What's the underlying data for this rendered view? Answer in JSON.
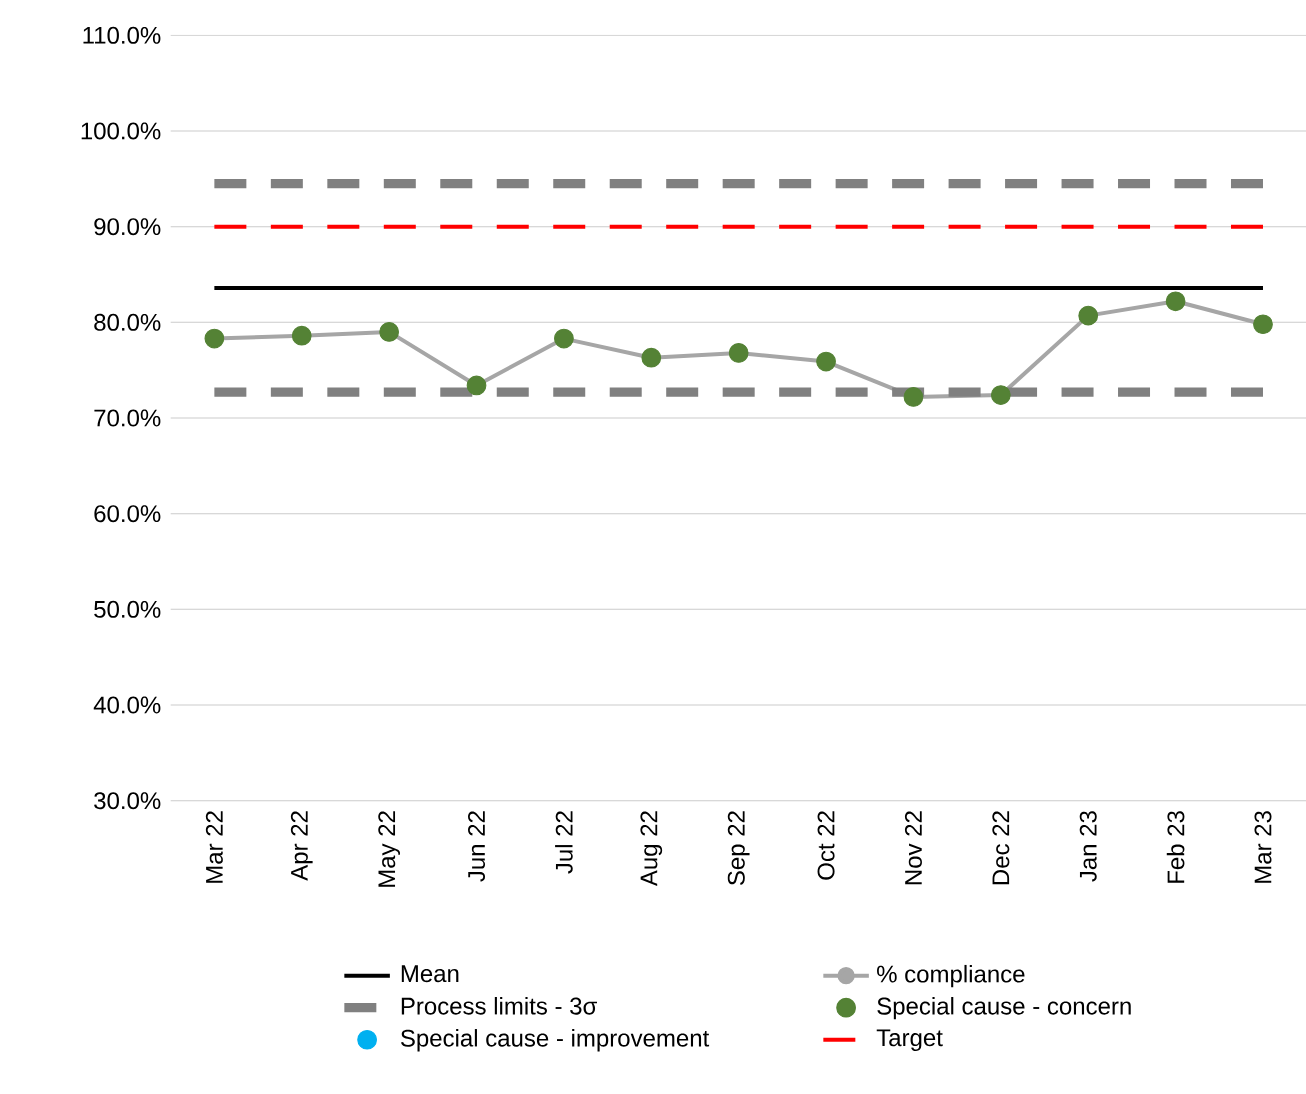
{
  "chart_data": {
    "type": "line",
    "categories": [
      "Mar 22",
      "Apr 22",
      "May 22",
      "Jun 22",
      "Jul 22",
      "Aug 22",
      "Sep 22",
      "Oct 22",
      "Nov 22",
      "Dec 22",
      "Jan 23",
      "Feb 23",
      "Mar 23"
    ],
    "series": [
      {
        "name": "Mean",
        "color": "#000000",
        "line_style": "solid",
        "marker": "none",
        "values": [
          83.6,
          83.6,
          83.6,
          83.6,
          83.6,
          83.6,
          83.6,
          83.6,
          83.6,
          83.6,
          83.6,
          83.6,
          83.6
        ]
      },
      {
        "name": "% compliance",
        "color": "#a6a6a6",
        "line_style": "solid",
        "marker": "circle",
        "values": [
          78.3,
          78.6,
          79.0,
          73.4,
          78.3,
          76.3,
          76.8,
          75.9,
          72.2,
          72.4,
          80.7,
          82.2,
          79.8
        ]
      },
      {
        "name": "Process limits - 3σ",
        "color": "#808080",
        "line_style": "dashed",
        "marker": "none",
        "values": [
          94.5,
          94.5,
          94.5,
          94.5,
          94.5,
          94.5,
          94.5,
          94.5,
          94.5,
          94.5,
          94.5,
          94.5,
          94.5
        ]
      },
      {
        "name": "Special cause - concern",
        "type": "scatter",
        "color": "#548235",
        "marker": "circle",
        "values": [
          78.3,
          78.6,
          79.0,
          73.4,
          78.3,
          76.3,
          76.8,
          75.9,
          72.2,
          72.4,
          80.7,
          82.2,
          79.8
        ]
      },
      {
        "name": "Special cause  - improvement",
        "type": "scatter",
        "color": "#00b0f0",
        "marker": "circle",
        "values": [
          null,
          null,
          null,
          null,
          null,
          null,
          null,
          null,
          null,
          null,
          null,
          null,
          null
        ]
      },
      {
        "name": "Target",
        "color": "#ff0000",
        "line_style": "dashed",
        "marker": "none",
        "values": [
          90,
          90,
          90,
          90,
          90,
          90,
          90,
          90,
          90,
          90,
          90,
          90,
          90
        ]
      },
      {
        "color": "#808080",
        "line_style": "dashed",
        "marker": "none",
        "values": [
          72.7,
          72.7,
          72.7,
          72.7,
          72.7,
          72.7,
          72.7,
          72.7,
          72.7,
          72.7,
          72.7,
          72.7,
          72.7
        ]
      }
    ],
    "ylim": [
      30,
      110
    ],
    "yticks": [
      {
        "value": 30,
        "label": "30.0%"
      },
      {
        "value": 40,
        "label": "40.0%"
      },
      {
        "value": 50,
        "label": "50.0%"
      },
      {
        "value": 60,
        "label": "60.0%"
      },
      {
        "value": 70,
        "label": "70.0%"
      },
      {
        "value": 80,
        "label": "80.0%"
      },
      {
        "value": 90,
        "label": "90.0%"
      },
      {
        "value": 100,
        "label": "100.0%"
      },
      {
        "value": 110,
        "label": "110.0%"
      }
    ],
    "grid": "y",
    "legend": "bottom"
  }
}
